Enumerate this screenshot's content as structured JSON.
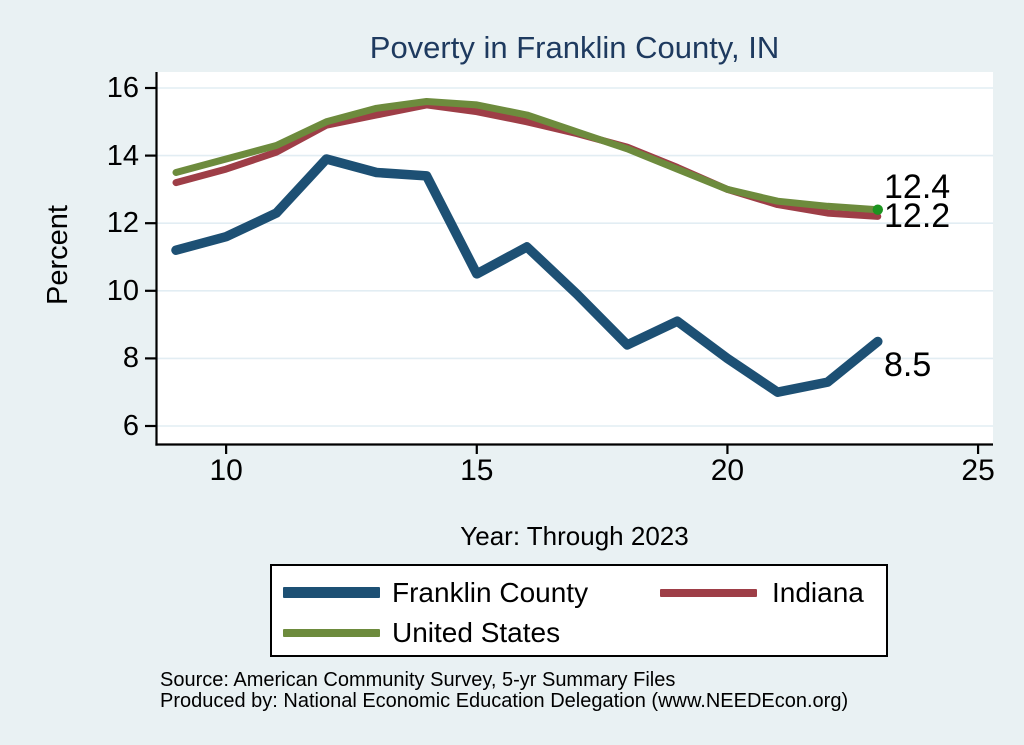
{
  "title": "Poverty in Franklin County, IN",
  "chart_data": {
    "type": "line",
    "title": "Poverty in Franklin County, IN",
    "xlabel": "Year: Through 2023",
    "ylabel": "Percent",
    "x": [
      9,
      10,
      11,
      12,
      13,
      14,
      15,
      16,
      17,
      18,
      19,
      20,
      21,
      22,
      23
    ],
    "series": [
      {
        "name": "Franklin County",
        "color": "#1d5074",
        "width": 9.5,
        "values": [
          11.2,
          11.6,
          12.3,
          13.9,
          13.5,
          13.4,
          10.5,
          11.3,
          9.9,
          8.4,
          9.1,
          8.0,
          7.0,
          7.3,
          8.5
        ],
        "end_label": "8.5",
        "end_marker": false
      },
      {
        "name": "Indiana",
        "color": "#9e3e47",
        "width": 7,
        "values": [
          13.2,
          13.6,
          14.1,
          14.9,
          15.2,
          15.5,
          15.3,
          15.0,
          14.65,
          14.25,
          13.65,
          13.0,
          12.55,
          12.3,
          12.2
        ],
        "end_label": "12.2",
        "end_marker": false
      },
      {
        "name": "United States",
        "color": "#6d8b3d",
        "width": 7,
        "values": [
          13.5,
          13.9,
          14.3,
          15.0,
          15.4,
          15.6,
          15.5,
          15.2,
          14.7,
          14.2,
          13.6,
          13.0,
          12.65,
          12.5,
          12.4
        ],
        "end_label": "12.4",
        "end_marker": true
      }
    ],
    "draw_order": [
      1,
      2,
      0
    ],
    "x_ticks": [
      10,
      15,
      20,
      25
    ],
    "y_ticks": [
      16,
      14,
      12,
      10,
      8,
      6
    ],
    "xlim": [
      8.5,
      25.3
    ],
    "ylim": [
      5.4,
      16.5
    ],
    "grid": true,
    "legend_position": "bottom"
  },
  "colors": {
    "background": "#e9f1f3",
    "plot_background": "#ffffff",
    "gridline": "#e2edf3",
    "axis": "#000000",
    "title_text": "#1e3a5f",
    "end_marker_green": "#1d9420"
  },
  "source": {
    "line1": "Source: American Community Survey, 5-yr Summary Files",
    "line2": "Produced by: National Economic Education Delegation (www.NEEDEcon.org)"
  }
}
